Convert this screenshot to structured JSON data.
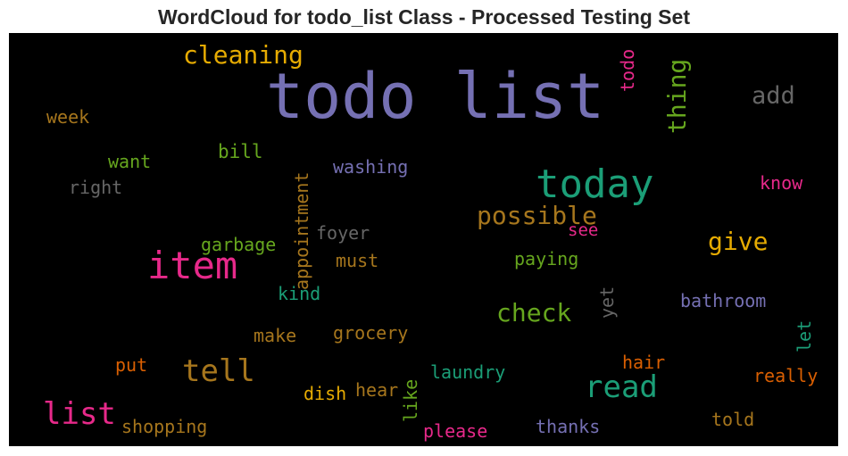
{
  "title": "WordCloud for todo_list Class - Processed Testing Set",
  "words": {
    "todo_list": {
      "text": "todo list",
      "color": "#7570b3"
    },
    "today": {
      "text": "today",
      "color": "#1b9e77"
    },
    "item": {
      "text": "item",
      "color": "#e7298a"
    },
    "cleaning": {
      "text": "cleaning",
      "color": "#e6ab02"
    },
    "thing": {
      "text": "thing",
      "color": "#66a61e"
    },
    "todo": {
      "text": "todo",
      "color": "#e7298a"
    },
    "add": {
      "text": "add",
      "color": "#666666"
    },
    "week": {
      "text": "week",
      "color": "#a6761d"
    },
    "bill": {
      "text": "bill",
      "color": "#66a61e"
    },
    "want": {
      "text": "want",
      "color": "#66a61e"
    },
    "washing": {
      "text": "washing",
      "color": "#7570b3"
    },
    "right": {
      "text": "right",
      "color": "#666666"
    },
    "appointment": {
      "text": "appointment",
      "color": "#a6761d"
    },
    "possible": {
      "text": "possible",
      "color": "#a6761d"
    },
    "know": {
      "text": "know",
      "color": "#e7298a"
    },
    "foyer": {
      "text": "foyer",
      "color": "#666666"
    },
    "see": {
      "text": "see",
      "color": "#e7298a"
    },
    "give": {
      "text": "give",
      "color": "#e6ab02"
    },
    "garbage": {
      "text": "garbage",
      "color": "#66a61e"
    },
    "must": {
      "text": "must",
      "color": "#a6761d"
    },
    "paying": {
      "text": "paying",
      "color": "#66a61e"
    },
    "kind": {
      "text": "kind",
      "color": "#1b9e77"
    },
    "check": {
      "text": "check",
      "color": "#66a61e"
    },
    "yet": {
      "text": "yet",
      "color": "#666666"
    },
    "bathroom": {
      "text": "bathroom",
      "color": "#7570b3"
    },
    "make": {
      "text": "make",
      "color": "#a6761d"
    },
    "grocery": {
      "text": "grocery",
      "color": "#a6761d"
    },
    "let": {
      "text": "let",
      "color": "#1b9e77"
    },
    "tell": {
      "text": "tell",
      "color": "#a6761d"
    },
    "read": {
      "text": "read",
      "color": "#1b9e77"
    },
    "put": {
      "text": "put",
      "color": "#d95f02"
    },
    "laundry": {
      "text": "laundry",
      "color": "#1b9e77"
    },
    "hair": {
      "text": "hair",
      "color": "#d95f02"
    },
    "really": {
      "text": "really",
      "color": "#d95f02"
    },
    "dish": {
      "text": "dish",
      "color": "#e6ab02"
    },
    "hear": {
      "text": "hear",
      "color": "#a6761d"
    },
    "like": {
      "text": "like",
      "color": "#66a61e"
    },
    "list": {
      "text": "list",
      "color": "#e7298a"
    },
    "shopping": {
      "text": "shopping",
      "color": "#a6761d"
    },
    "please": {
      "text": "please",
      "color": "#e7298a"
    },
    "thanks": {
      "text": "thanks",
      "color": "#7570b3"
    },
    "told": {
      "text": "told",
      "color": "#a6761d"
    }
  }
}
